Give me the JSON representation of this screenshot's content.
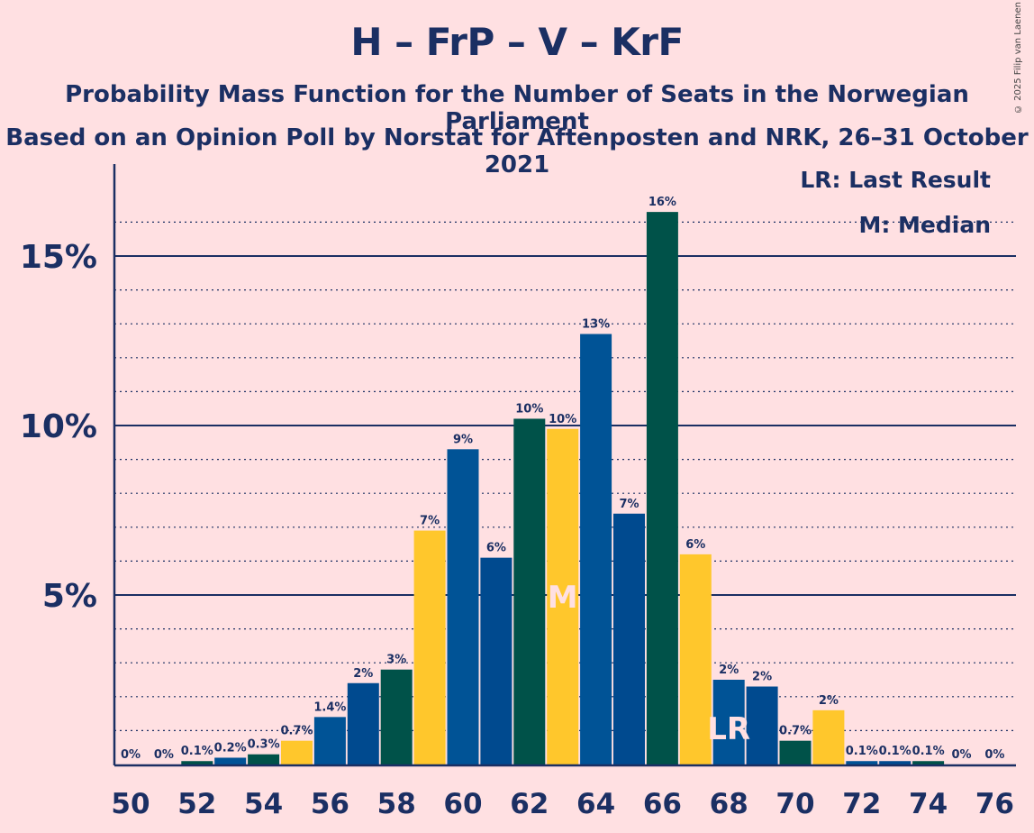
{
  "title": "H – FrP – V – KrF",
  "subtitle1": "Probability Mass Function for the Number of Seats in the Norwegian Parliament",
  "subtitle2": "Based on an Opinion Poll by Norstat for Aftenposten and NRK, 26–31 October 2021",
  "copyright": "© 2025 Filip van Laenen",
  "legend": {
    "last_result": "LR: Last Result",
    "median": "M: Median"
  },
  "colors": {
    "background": "#ffe0e2",
    "text": "#1b2f63",
    "H": "#005396",
    "FrP": "#004a8f",
    "V": "#005249",
    "KrF": "#ffc72c"
  },
  "chart_data": {
    "type": "bar",
    "xlim": [
      50,
      76
    ],
    "ylim": [
      0,
      17
    ],
    "y_ticks": [
      {
        "value": 5,
        "label": "5%"
      },
      {
        "value": 10,
        "label": "10%"
      },
      {
        "value": 15,
        "label": "15%"
      }
    ],
    "x_ticks": [
      "50",
      "52",
      "54",
      "56",
      "58",
      "60",
      "62",
      "64",
      "66",
      "68",
      "70",
      "72",
      "74",
      "76"
    ],
    "median": 63,
    "last_result": 68,
    "bars": [
      {
        "x": 50,
        "value": 0,
        "label": "0%",
        "color": "#005396"
      },
      {
        "x": 51,
        "value": 0,
        "label": "0%",
        "color": "#004a8f"
      },
      {
        "x": 52,
        "value": 0.1,
        "label": "0.1%",
        "color": "#005249"
      },
      {
        "x": 53,
        "value": 0.2,
        "label": "0.2%",
        "color": "#005396"
      },
      {
        "x": 54,
        "value": 0.3,
        "label": "0.3%",
        "color": "#005249"
      },
      {
        "x": 55,
        "value": 0.7,
        "label": "0.7%",
        "color": "#ffc72c"
      },
      {
        "x": 56,
        "value": 1.4,
        "label": "1.4%",
        "color": "#005396"
      },
      {
        "x": 57,
        "value": 2.4,
        "label": "2%",
        "color": "#004a8f"
      },
      {
        "x": 58,
        "value": 2.8,
        "label": "3%",
        "color": "#005249"
      },
      {
        "x": 59,
        "value": 6.9,
        "label": "7%",
        "color": "#ffc72c"
      },
      {
        "x": 60,
        "value": 9.3,
        "label": "9%",
        "color": "#005396"
      },
      {
        "x": 61,
        "value": 6.1,
        "label": "6%",
        "color": "#004a8f"
      },
      {
        "x": 62,
        "value": 10.2,
        "label": "10%",
        "color": "#005249"
      },
      {
        "x": 63,
        "value": 9.9,
        "label": "10%",
        "color": "#ffc72c"
      },
      {
        "x": 64,
        "value": 12.7,
        "label": "13%",
        "color": "#005396"
      },
      {
        "x": 65,
        "value": 7.4,
        "label": "7%",
        "color": "#004a8f"
      },
      {
        "x": 66,
        "value": 16.3,
        "label": "16%",
        "color": "#005249"
      },
      {
        "x": 67,
        "value": 6.2,
        "label": "6%",
        "color": "#ffc72c"
      },
      {
        "x": 68,
        "value": 2.5,
        "label": "2%",
        "color": "#005396"
      },
      {
        "x": 69,
        "value": 2.3,
        "label": "2%",
        "color": "#004a8f"
      },
      {
        "x": 70,
        "value": 0.7,
        "label": "0.7%",
        "color": "#005249"
      },
      {
        "x": 71,
        "value": 1.6,
        "label": "2%",
        "color": "#ffc72c"
      },
      {
        "x": 72,
        "value": 0.1,
        "label": "0.1%",
        "color": "#005396"
      },
      {
        "x": 73,
        "value": 0.1,
        "label": "0.1%",
        "color": "#004a8f"
      },
      {
        "x": 74,
        "value": 0.1,
        "label": "0.1%",
        "color": "#005249"
      },
      {
        "x": 75,
        "value": 0,
        "label": "0%",
        "color": "#ffc72c"
      },
      {
        "x": 76,
        "value": 0,
        "label": "0%",
        "color": "#005396"
      }
    ],
    "grid": "dotted minor every 1%, solid major every 5%",
    "legend_position": "top-right"
  }
}
